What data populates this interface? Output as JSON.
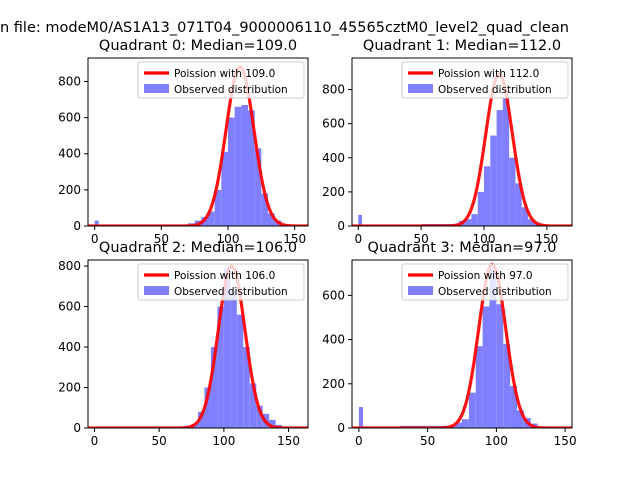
{
  "figure": {
    "suptitle": "n file: modeM0/AS1A13_071T04_9000006110_45565cztM0_level2_quad_clean"
  },
  "chart_data": [
    {
      "type": "bar",
      "title": "Quadrant 0: Median=109.0",
      "xlim": [
        -5,
        160
      ],
      "ylim": [
        0,
        930
      ],
      "xticks": [
        0,
        50,
        100,
        150
      ],
      "yticks": [
        0,
        200,
        400,
        600,
        800
      ],
      "legend": {
        "placement": "top-right",
        "entries": [
          "Poission with 109.0",
          "Observed distribution"
        ]
      },
      "series": [
        {
          "name": "Poission with 109.0",
          "kind": "line",
          "color": "#ff0000",
          "lambda": 109.0,
          "peak": 880
        },
        {
          "name": "Observed distribution",
          "kind": "hist",
          "color": "#8080ff",
          "bins": [
            [
              0,
              3,
              30
            ],
            [
              3,
              70,
              6
            ],
            [
              70,
              75,
              15
            ],
            [
              75,
              80,
              30
            ],
            [
              80,
              85,
              50
            ],
            [
              85,
              90,
              80
            ],
            [
              90,
              95,
              200
            ],
            [
              95,
              100,
              410
            ],
            [
              100,
              105,
              600
            ],
            [
              105,
              110,
              660
            ],
            [
              110,
              115,
              670
            ],
            [
              115,
              120,
              640
            ],
            [
              120,
              125,
              430
            ],
            [
              125,
              130,
              180
            ],
            [
              130,
              135,
              70
            ],
            [
              135,
              140,
              30
            ],
            [
              140,
              145,
              10
            ],
            [
              145,
              150,
              4
            ]
          ]
        }
      ]
    },
    {
      "type": "bar",
      "title": "Quadrant 1: Median=112.0",
      "xlim": [
        -5,
        170
      ],
      "ylim": [
        0,
        985
      ],
      "xticks": [
        0,
        50,
        100,
        150
      ],
      "yticks": [
        0,
        200,
        400,
        600,
        800
      ],
      "legend": {
        "placement": "top-right",
        "entries": [
          "Poission with 112.0",
          "Observed distribution"
        ]
      },
      "series": [
        {
          "name": "Poission with 112.0",
          "kind": "line",
          "color": "#ff0000",
          "lambda": 112.0,
          "peak": 890
        },
        {
          "name": "Observed distribution",
          "kind": "hist",
          "color": "#8080ff",
          "bins": [
            [
              0,
              3,
              65
            ],
            [
              3,
              50,
              6
            ],
            [
              50,
              80,
              12
            ],
            [
              80,
              85,
              30
            ],
            [
              85,
              90,
              40
            ],
            [
              90,
              95,
              70
            ],
            [
              95,
              100,
              200
            ],
            [
              100,
              105,
              350
            ],
            [
              105,
              110,
              530
            ],
            [
              110,
              115,
              680
            ],
            [
              115,
              120,
              750
            ],
            [
              120,
              125,
              400
            ],
            [
              125,
              130,
              250
            ],
            [
              130,
              135,
              110
            ],
            [
              135,
              140,
              40
            ],
            [
              140,
              145,
              20
            ],
            [
              145,
              150,
              8
            ]
          ]
        }
      ]
    },
    {
      "type": "bar",
      "title": "Quadrant 2: Median=106.0",
      "xlim": [
        -5,
        165
      ],
      "ylim": [
        0,
        830
      ],
      "xticks": [
        0,
        50,
        100,
        150
      ],
      "yticks": [
        0,
        200,
        400,
        600,
        800
      ],
      "legend": {
        "placement": "top-right",
        "entries": [
          "Poission with 106.0",
          "Observed distribution"
        ]
      },
      "series": [
        {
          "name": "Poission with 106.0",
          "kind": "line",
          "color": "#ff0000",
          "lambda": 106.0,
          "peak": 800
        },
        {
          "name": "Observed distribution",
          "kind": "hist",
          "color": "#8080ff",
          "bins": [
            [
              65,
              70,
              5
            ],
            [
              70,
              75,
              10
            ],
            [
              75,
              80,
              20
            ],
            [
              80,
              85,
              80
            ],
            [
              85,
              90,
              200
            ],
            [
              90,
              95,
              400
            ],
            [
              95,
              100,
              600
            ],
            [
              100,
              105,
              790
            ],
            [
              105,
              110,
              680
            ],
            [
              110,
              115,
              560
            ],
            [
              115,
              120,
              400
            ],
            [
              120,
              125,
              220
            ],
            [
              125,
              130,
              110
            ],
            [
              130,
              135,
              70
            ],
            [
              135,
              140,
              40
            ],
            [
              140,
              145,
              15
            ]
          ]
        }
      ]
    },
    {
      "type": "bar",
      "title": "Quadrant 3: Median=97.0",
      "xlim": [
        -5,
        155
      ],
      "ylim": [
        0,
        760
      ],
      "xticks": [
        0,
        50,
        100,
        150
      ],
      "yticks": [
        0,
        200,
        400,
        600
      ],
      "legend": {
        "placement": "top-right",
        "entries": [
          "Poission with 97.0",
          "Observed distribution"
        ]
      },
      "series": [
        {
          "name": "Poission with 97.0",
          "kind": "line",
          "color": "#ff0000",
          "lambda": 97.0,
          "peak": 740
        },
        {
          "name": "Observed distribution",
          "kind": "hist",
          "color": "#8080ff",
          "bins": [
            [
              0,
              3,
              95
            ],
            [
              3,
              30,
              5
            ],
            [
              30,
              70,
              10
            ],
            [
              70,
              75,
              25
            ],
            [
              75,
              80,
              40
            ],
            [
              80,
              85,
              160
            ],
            [
              85,
              90,
              370
            ],
            [
              90,
              95,
              550
            ],
            [
              95,
              100,
              720
            ],
            [
              100,
              105,
              560
            ],
            [
              105,
              110,
              380
            ],
            [
              110,
              115,
              190
            ],
            [
              115,
              120,
              80
            ],
            [
              120,
              125,
              45
            ],
            [
              125,
              130,
              20
            ]
          ]
        }
      ]
    }
  ]
}
